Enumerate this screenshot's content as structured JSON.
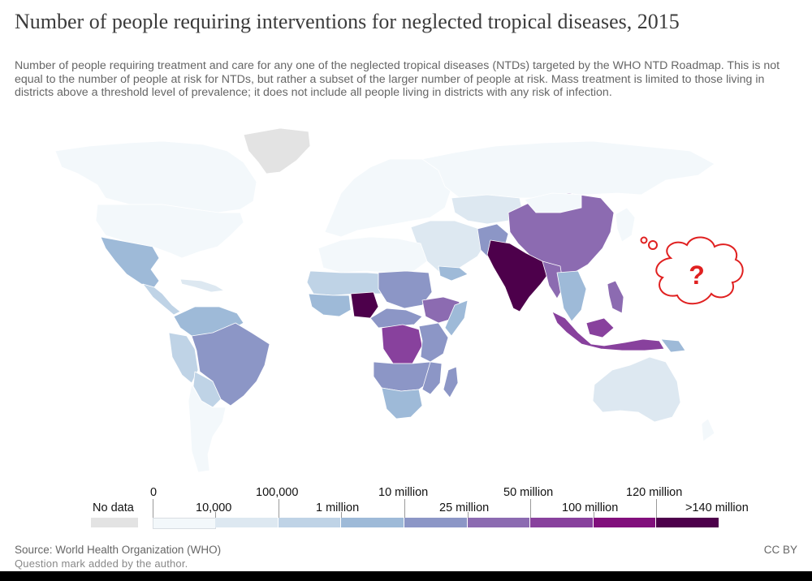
{
  "title": "Number of people requiring interventions for neglected tropical diseases, 2015",
  "subtitle": "Number of people requiring treatment and care for any one of the neglected tropical diseases (NTDs) targeted by the WHO NTD Roadmap. This is not equal to the number of people at risk for NTDs, but rather a subset of the larger number of people at risk. Mass treatment is limited to those living in districts above a threshold level of prevalence; it does not include all people living in districts with any risk of infection.",
  "annotation": {
    "symbol": "?",
    "color": "#e02020"
  },
  "legend": {
    "no_data_label": "No data",
    "no_data_color": "#e3e3e3",
    "upper_labels": [
      "0",
      "100,000",
      "10 million",
      "50 million",
      "120 million"
    ],
    "lower_labels": [
      "10,000",
      "1 million",
      "25 million",
      "100 million",
      ">140 million"
    ],
    "colors": [
      "#f3f8fb",
      "#dde8f1",
      "#bfd3e6",
      "#9ebad8",
      "#8c96c6",
      "#8c6bb1",
      "#88419d",
      "#810f7c",
      "#4d004b"
    ]
  },
  "source": "Source: World Health Organization (WHO)",
  "note": "Question mark added by the author.",
  "license": "CC BY"
}
